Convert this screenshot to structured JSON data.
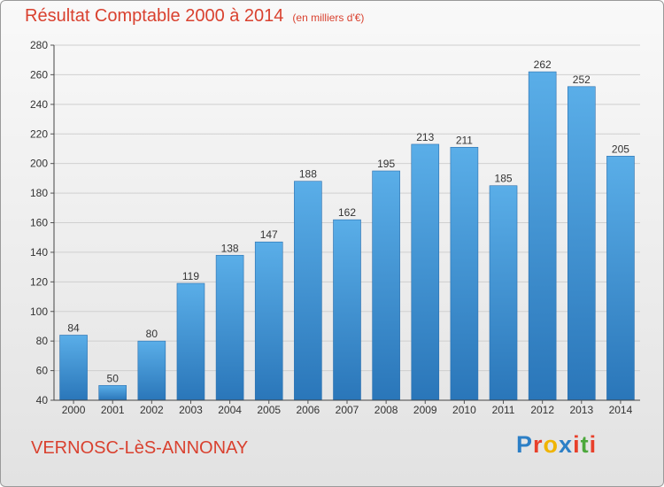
{
  "header": {
    "title": "Résultat Comptable 2000 à 2014",
    "unit": "(en milliers d'€)"
  },
  "footer": {
    "commune": "VERNOSC-LèS-ANNONAY",
    "logo_letters": [
      "P",
      "r",
      "o",
      "x",
      "i",
      "t",
      "i"
    ],
    "logo_colors": [
      "#2c7fc6",
      "#e8402b",
      "#f0b400",
      "#2c7fc6",
      "#e8402b",
      "#4ca83c",
      "#e8402b"
    ]
  },
  "chart_data": {
    "type": "bar",
    "title": "Résultat Comptable 2000 à 2014",
    "categories": [
      "2000",
      "2001",
      "2002",
      "2003",
      "2004",
      "2005",
      "2006",
      "2007",
      "2008",
      "2009",
      "2010",
      "2011",
      "2012",
      "2013",
      "2014"
    ],
    "values": [
      84,
      50,
      80,
      119,
      138,
      147,
      188,
      162,
      195,
      213,
      211,
      185,
      262,
      252,
      205
    ],
    "ylim": [
      40,
      280
    ],
    "yticks": [
      40,
      60,
      80,
      100,
      120,
      140,
      160,
      180,
      200,
      220,
      240,
      260,
      280
    ],
    "grid": true,
    "bar_color": "#4a9fe0",
    "bar_color_dark": "#2b75b8"
  }
}
